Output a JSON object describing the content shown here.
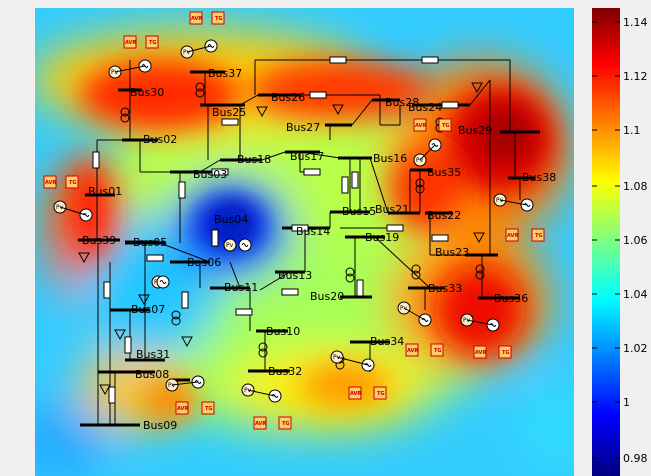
{
  "diagram": {
    "buses": [
      {
        "id": "bus01",
        "label": "Bus01"
      },
      {
        "id": "bus02",
        "label": "Bus02"
      },
      {
        "id": "bus03",
        "label": "Bus03"
      },
      {
        "id": "bus04",
        "label": "Bus04"
      },
      {
        "id": "bus05",
        "label": "Bus05"
      },
      {
        "id": "bus06",
        "label": "Bus06"
      },
      {
        "id": "bus07",
        "label": "Bus07"
      },
      {
        "id": "bus08",
        "label": "Bus08"
      },
      {
        "id": "bus09",
        "label": "Bus09"
      },
      {
        "id": "bus10",
        "label": "Bus10"
      },
      {
        "id": "bus11",
        "label": "Bus11"
      },
      {
        "id": "bus13",
        "label": "Bus13"
      },
      {
        "id": "bus14",
        "label": "Bus14"
      },
      {
        "id": "bus15",
        "label": "Bus15"
      },
      {
        "id": "bus16",
        "label": "Bus16"
      },
      {
        "id": "bus17",
        "label": "Bus17"
      },
      {
        "id": "bus18",
        "label": "Bus18"
      },
      {
        "id": "bus19",
        "label": "Bus19"
      },
      {
        "id": "bus20",
        "label": "Bus20"
      },
      {
        "id": "bus21",
        "label": "Bus21"
      },
      {
        "id": "bus22",
        "label": "Bus22"
      },
      {
        "id": "bus23",
        "label": "Bus23"
      },
      {
        "id": "bus24",
        "label": "Bus24"
      },
      {
        "id": "bus25",
        "label": "Bus25"
      },
      {
        "id": "bus26",
        "label": "Bus26"
      },
      {
        "id": "bus27",
        "label": "Bus27"
      },
      {
        "id": "bus28",
        "label": "Bus28"
      },
      {
        "id": "bus29",
        "label": "Bus29"
      },
      {
        "id": "bus30",
        "label": "Bus30"
      },
      {
        "id": "bus31",
        "label": "Bus31"
      },
      {
        "id": "bus32",
        "label": "Bus32"
      },
      {
        "id": "bus33",
        "label": "Bus33"
      },
      {
        "id": "bus34",
        "label": "Bus34"
      },
      {
        "id": "bus35",
        "label": "Bus35"
      },
      {
        "id": "bus36",
        "label": "Bus36"
      },
      {
        "id": "bus37",
        "label": "Bus37"
      },
      {
        "id": "bus38",
        "label": "Bus38"
      },
      {
        "id": "bus39",
        "label": "Bus39"
      }
    ],
    "gen_label": "Pv",
    "block_label_a": "AVR",
    "block_label_b": "TG"
  },
  "colorbar": {
    "ticks": [
      "1.14",
      "1.12",
      "1.1",
      "1.08",
      "1.06",
      "1.04",
      "1.02",
      "1",
      "0.98"
    ],
    "colors": [
      "#7f0000",
      "#ff0000",
      "#ffff00",
      "#00ffff",
      "#0000ff",
      "#00007f"
    ]
  }
}
